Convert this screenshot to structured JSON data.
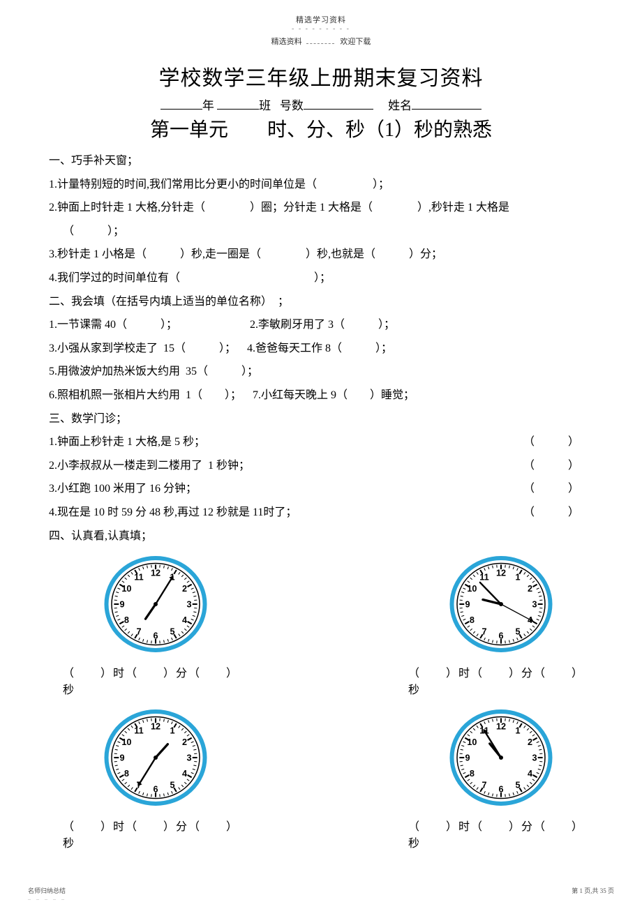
{
  "header": {
    "line1": "精选学习资料",
    "line2_left": "精选资料",
    "line2_right": "欢迎下载"
  },
  "title": "学校数学三年级上册期末复习资料",
  "info": {
    "year": "年",
    "class": "班",
    "number_label": "号数",
    "name_label": "姓名"
  },
  "unit_title": "第一单元  时、分、秒（1）秒的熟悉",
  "sec1": {
    "heading": "一、巧手补天窗；",
    "q1": "1.计量特别短的时间,我们常用比分更小的时间单位是（　　　　　）；",
    "q2": "2.钟面上时针走 1 大格,分针走（　　　　）圈；分针走 1 大格是（　　　　）,秒针走 1 大格是",
    "q2b": "（　　　）；",
    "q3": "3.秒针走 1 小格是（　　　）秒,走一圈是（　　　　）秒,也就是（　　　）分；",
    "q4": "4.我们学过的时间单位有（　　　　　　　　　　　　）；"
  },
  "sec2": {
    "heading": "二、我会填（在括号内填上适当的单位名称）　；",
    "q1": "1.一节课需 40（　　　）；",
    "q2": "2.李敏刷牙用了 3（　　　）；",
    "q3": "3.小强从家到学校走了 15（　　　）；",
    "q4": "4.爸爸每天工作 8（　　　）；",
    "q5": "5.用微波炉加热米饭大约用 35（　　　）；",
    "q6": "6.照相机照一张相片大约用 1（　　）；",
    "q7": "7.小红每天晚上 9（　　）睡觉；"
  },
  "sec3": {
    "heading": "三、数学门诊；",
    "q1": "1.钟面上秒针走 1 大格,是 5 秒；",
    "q2": "2.小李叔叔从一楼走到二楼用了 1 秒钟；",
    "q3": "3.小红跑 100 米用了 16 分钟；",
    "q4": "4.现在是 10 时 59 分 48 秒,再过 12 秒就是 11时了；",
    "paren": "（　　　）"
  },
  "sec4": {
    "heading": "四、认真看,认真填；",
    "label": "（　　）时（　　）分（　　）秒"
  },
  "clocks": {
    "border_color": "#2aa5d8",
    "face_color": "#ffffff",
    "tick_color": "#000000",
    "hand_color": "#000000",
    "number_fontsize": 13,
    "data": [
      {
        "hour": 7,
        "minute": 5,
        "second": 0,
        "show_second": false,
        "min_as_arrow": true
      },
      {
        "hour": 9,
        "minute": 53,
        "second": 20,
        "show_second": true,
        "min_as_arrow": false,
        "override_hour_angle": 285
      },
      {
        "hour": 1,
        "minute": 35,
        "second": 10,
        "show_second": false,
        "min_as_arrow": true,
        "override_hour_angle": 40
      },
      {
        "hour": 10,
        "minute": 55,
        "second": 0,
        "show_second": false,
        "min_as_arrow": true,
        "override_hour_angle": 323,
        "override_minute_angle": 330
      }
    ]
  },
  "footer": {
    "left": "名师归纳总结",
    "right": "第 1 页,共 35 页"
  }
}
